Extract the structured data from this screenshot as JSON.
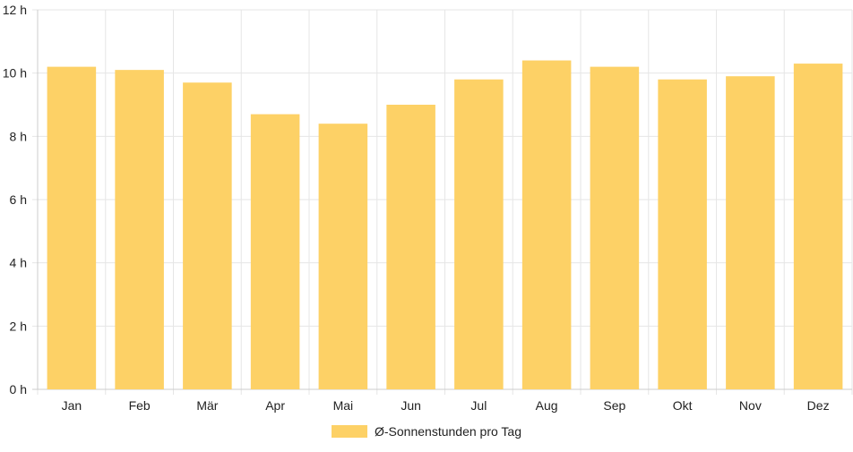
{
  "chart_data": {
    "type": "bar",
    "categories": [
      "Jan",
      "Feb",
      "Mär",
      "Apr",
      "Mai",
      "Jun",
      "Jul",
      "Aug",
      "Sep",
      "Okt",
      "Nov",
      "Dez"
    ],
    "series": [
      {
        "name": "Ø-Sonnenstunden pro Tag",
        "values": [
          10.2,
          10.1,
          9.7,
          8.7,
          8.4,
          9.0,
          9.8,
          10.4,
          10.2,
          9.8,
          9.9,
          10.3
        ]
      }
    ],
    "y_ticks": [
      "0 h",
      "2 h",
      "4 h",
      "6 h",
      "8 h",
      "10 h",
      "12 h"
    ],
    "ylim": [
      0,
      12
    ],
    "grid": true,
    "legend_position": "bottom",
    "colors": {
      "bar": "#fdd166",
      "grid": "#e6e6e6",
      "axis": "#cccccc"
    }
  }
}
